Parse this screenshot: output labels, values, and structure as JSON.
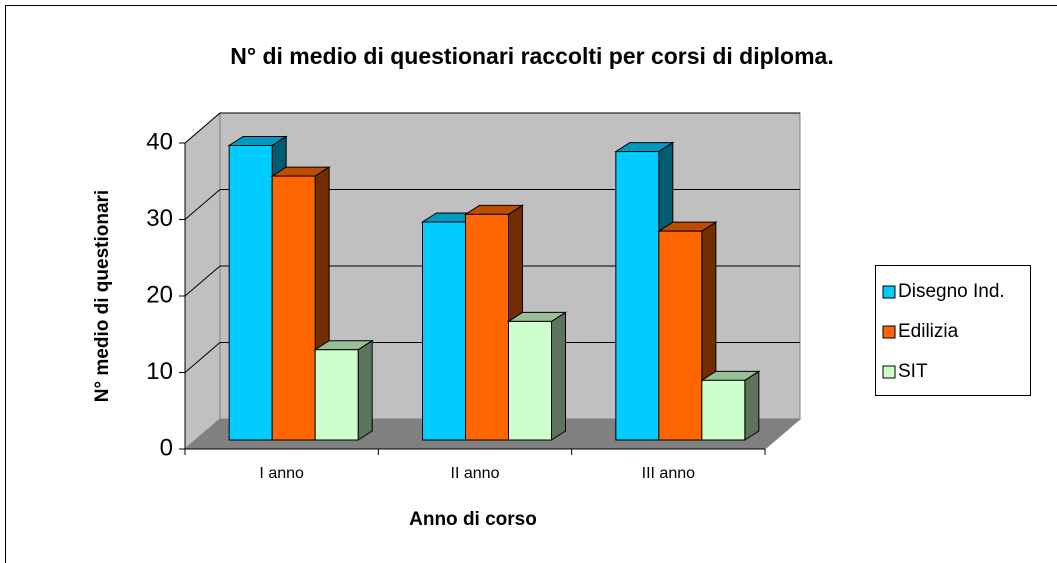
{
  "chart_data": {
    "type": "bar3d",
    "title": "N° di medio di questionari raccolti per corsi di diploma.",
    "x_label": "Anno di corso",
    "y_label": "N° medio di questionari",
    "categories": [
      "I anno",
      "II anno",
      "III anno"
    ],
    "series": [
      {
        "name": "Disegno Ind.",
        "color": "#00ccff",
        "values": [
          38.5,
          28.5,
          37.7
        ]
      },
      {
        "name": "Edilizia",
        "color": "#ff6600",
        "values": [
          34.5,
          29.5,
          27.3
        ]
      },
      {
        "name": "SIT",
        "color": "#ccffcc",
        "values": [
          11.8,
          15.5,
          7.8
        ]
      }
    ],
    "ylim": [
      0,
      40
    ],
    "yticks": [
      0,
      10,
      20,
      30,
      40
    ],
    "grid": true,
    "legend": "right"
  }
}
